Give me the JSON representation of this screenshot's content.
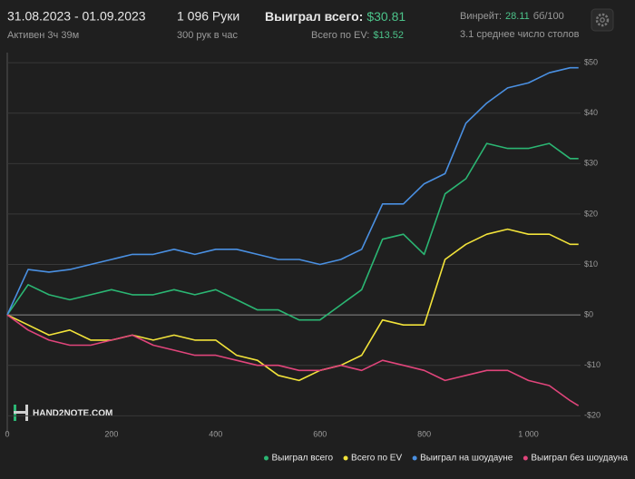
{
  "header": {
    "date_range": "31.08.2023 - 01.09.2023",
    "active": "Активен 3ч 39м",
    "hands": "1 096 Руки",
    "hands_per_hour": "300 рук в час",
    "won_label": "Выиграл всего:",
    "won_value": "$30.81",
    "ev_label": "Всего по EV:",
    "ev_value": "$13.52",
    "winrate_label": "Винрейт:",
    "winrate_value": "28.11",
    "winrate_unit": "бб/100",
    "tables": "3.1 среднее число столов"
  },
  "watermark": "HAND2NOTE.COM",
  "chart_data": {
    "type": "line",
    "x": [
      0,
      40,
      80,
      120,
      160,
      200,
      240,
      280,
      320,
      360,
      400,
      440,
      480,
      520,
      560,
      600,
      640,
      680,
      720,
      760,
      800,
      840,
      880,
      920,
      960,
      1000,
      1040,
      1080,
      1096
    ],
    "series": [
      {
        "name": "Выиграл всего",
        "color": "#2bb673",
        "values": [
          0,
          6,
          4,
          3,
          4,
          5,
          4,
          4,
          5,
          4,
          5,
          3,
          1,
          1,
          -1,
          -1,
          2,
          5,
          15,
          16,
          12,
          24,
          27,
          34,
          33,
          33,
          34,
          31,
          31
        ]
      },
      {
        "name": "Всего по EV",
        "color": "#f2e33a",
        "values": [
          0,
          -2,
          -4,
          -3,
          -5,
          -5,
          -4,
          -5,
          -4,
          -5,
          -5,
          -8,
          -9,
          -12,
          -13,
          -11,
          -10,
          -8,
          -1,
          -2,
          -2,
          11,
          14,
          16,
          17,
          16,
          16,
          14,
          14
        ]
      },
      {
        "name": "Выиграл на шоудауне",
        "color": "#4a90e2",
        "values": [
          0,
          9,
          8.5,
          9,
          10,
          11,
          12,
          12,
          13,
          12,
          13,
          13,
          12,
          11,
          11,
          10,
          11,
          13,
          22,
          22,
          26,
          28,
          38,
          42,
          45,
          46,
          48,
          49,
          49
        ]
      },
      {
        "name": "Выиграл без шоудауна",
        "color": "#e0457b",
        "values": [
          0,
          -3,
          -5,
          -6,
          -6,
          -5,
          -4,
          -6,
          -7,
          -8,
          -8,
          -9,
          -10,
          -10,
          -11,
          -11,
          -10,
          -11,
          -9,
          -10,
          -11,
          -13,
          -12,
          -11,
          -11,
          -13,
          -14,
          -17,
          -18
        ]
      }
    ],
    "xlim": [
      0,
      1100
    ],
    "ylim": [
      -23,
      52
    ],
    "xticks": [
      0,
      200,
      400,
      600,
      800,
      {
        "value": 1000,
        "label": "1 000"
      }
    ],
    "yticks": [
      {
        "value": -20,
        "label": "-$20"
      },
      {
        "value": -10,
        "label": "-$10"
      },
      {
        "value": 0,
        "label": "$0"
      },
      {
        "value": 10,
        "label": "$10"
      },
      {
        "value": 20,
        "label": "$20"
      },
      {
        "value": 30,
        "label": "$30"
      },
      {
        "value": 40,
        "label": "$40"
      },
      {
        "value": 50,
        "label": "$50"
      }
    ],
    "grid": true
  }
}
